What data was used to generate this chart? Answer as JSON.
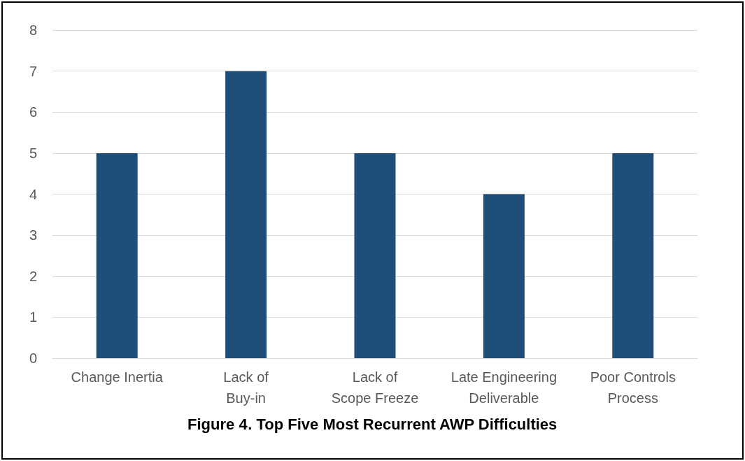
{
  "chart_data": {
    "type": "bar",
    "title": "Figure 4. Top Five Most Recurrent AWP Difficulties",
    "categories": [
      "Change Inertia",
      "Lack of\nBuy-in",
      "Lack of\nScope Freeze",
      "Late Engineering\nDeliverable",
      "Poor Controls\nProcess"
    ],
    "values": [
      5,
      7,
      5,
      4,
      5
    ],
    "color": "#1f4e79",
    "ylim": [
      0,
      8
    ],
    "yticks": [
      0,
      1,
      2,
      3,
      4,
      5,
      6,
      7,
      8
    ],
    "grid": "y"
  }
}
